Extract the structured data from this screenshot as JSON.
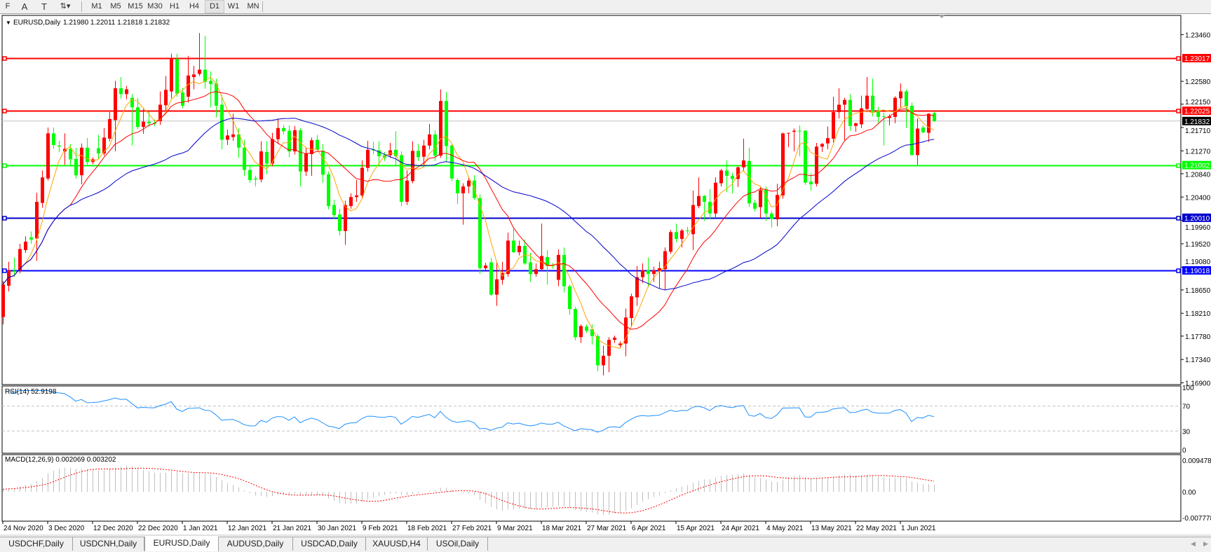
{
  "toolbar": {
    "tools": [
      {
        "name": "fibo-fan-tool",
        "label": "F"
      },
      {
        "name": "text-tool",
        "label": "A"
      },
      {
        "name": "text-label-tool",
        "label": "T"
      },
      {
        "name": "arrows-tool",
        "label": "⇅▾"
      }
    ],
    "timeframes": [
      "M1",
      "M5",
      "M15",
      "M30",
      "H1",
      "H4",
      "D1",
      "W1",
      "MN"
    ],
    "active_timeframe": "D1"
  },
  "chart": {
    "title": "EURUSD,Daily",
    "ohlc_readout": "1.21980 1.22011 1.21818 1.21832",
    "current_price": "1.21832"
  },
  "colors": {
    "bull_candle": "#ff0000",
    "bear_candle": "#00ff00",
    "ma_fast": "#ffa500",
    "ma_mid": "#ff0000",
    "ma_slow": "#0000cd",
    "rsi_line": "#1e90ff",
    "macd_hist": "#c0c0c0",
    "macd_signal": "#ff0000",
    "bid_line": "#c0c0c0"
  },
  "chart_data": {
    "type": "candlestick",
    "symbol": "EURUSD",
    "timeframe": "Daily",
    "y_ticks": [
      "1.23460",
      "1.22580",
      "1.22150",
      "1.21710",
      "1.21270",
      "1.20840",
      "1.20400",
      "1.19960",
      "1.19520",
      "1.19080",
      "1.18650",
      "1.18210",
      "1.17780",
      "1.17340",
      "1.16900"
    ],
    "ylim": [
      1.169,
      1.2375
    ],
    "x_labels": [
      "24 Nov 2020",
      "3 Dec 2020",
      "12 Dec 2020",
      "22 Dec 2020",
      "1 Jan 2021",
      "12 Jan 2021",
      "21 Jan 2021",
      "30 Jan 2021",
      "9 Feb 2021",
      "18 Feb 2021",
      "27 Feb 2021",
      "9 Mar 2021",
      "18 Mar 2021",
      "27 Mar 2021",
      "6 Apr 2021",
      "15 Apr 2021",
      "24 Apr 2021",
      "4 May 2021",
      "13 May 2021",
      "22 May 2021",
      "1 Jun 2021"
    ],
    "horizontal_lines": [
      {
        "price": "1.23017",
        "color": "#ff0000"
      },
      {
        "price": "1.22025",
        "color": "#ff0000"
      },
      {
        "price": "1.21002",
        "color": "#00ff00"
      },
      {
        "price": "1.20010",
        "color": "#0000cc"
      },
      {
        "price": "1.19018",
        "color": "#0000ff"
      }
    ],
    "ohlc": [
      [
        1.1814,
        1.1882,
        1.18,
        1.1875
      ],
      [
        1.1873,
        1.1918,
        1.1862,
        1.1902
      ],
      [
        1.1901,
        1.1926,
        1.189,
        1.1899
      ],
      [
        1.1902,
        1.1952,
        1.1896,
        1.1942
      ],
      [
        1.194,
        1.1966,
        1.1935,
        1.1956
      ],
      [
        1.1964,
        1.1975,
        1.1952,
        1.196
      ],
      [
        1.1962,
        1.2048,
        1.192,
        1.2031
      ],
      [
        1.2029,
        1.209,
        1.202,
        1.2077
      ],
      [
        1.2075,
        1.2171,
        1.2071,
        1.216
      ],
      [
        1.216,
        1.2171,
        1.2131,
        1.2138
      ],
      [
        1.2137,
        1.2146,
        1.2125,
        1.2135
      ],
      [
        1.2126,
        1.216,
        1.2101,
        1.2131
      ],
      [
        1.2131,
        1.214,
        1.21,
        1.2111
      ],
      [
        1.2112,
        1.2133,
        1.2075,
        1.2081
      ],
      [
        1.2081,
        1.2141,
        1.2064,
        1.2133
      ],
      [
        1.2133,
        1.2151,
        1.21,
        1.2106
      ],
      [
        1.2106,
        1.2115,
        1.2102,
        1.2111
      ],
      [
        1.2132,
        1.2157,
        1.2112,
        1.2122
      ],
      [
        1.2122,
        1.217,
        1.2118,
        1.2152
      ],
      [
        1.215,
        1.22,
        1.2145,
        1.2187
      ],
      [
        1.2185,
        1.2259,
        1.2126,
        1.2245
      ],
      [
        1.2245,
        1.2266,
        1.2226,
        1.2234
      ],
      [
        1.2234,
        1.2249,
        1.2224,
        1.2243
      ],
      [
        1.2227,
        1.2234,
        1.2137,
        1.2209
      ],
      [
        1.2209,
        1.2227,
        1.2168,
        1.2172
      ],
      [
        1.2172,
        1.2206,
        1.2159,
        1.2182
      ],
      [
        1.2182,
        1.2201,
        1.2172,
        1.2179
      ],
      [
        1.218,
        1.2186,
        1.2174,
        1.2178
      ],
      [
        1.2183,
        1.2239,
        1.2176,
        1.2214
      ],
      [
        1.2213,
        1.2268,
        1.2203,
        1.2242
      ],
      [
        1.2239,
        1.231,
        1.2226,
        1.2301
      ],
      [
        1.23,
        1.231,
        1.2229,
        1.2235
      ],
      [
        1.2237,
        1.2246,
        1.2207,
        1.2212
      ],
      [
        1.2229,
        1.2306,
        1.2218,
        1.2269
      ],
      [
        1.2266,
        1.2287,
        1.2243,
        1.2271
      ],
      [
        1.2272,
        1.2349,
        1.2268,
        1.228
      ],
      [
        1.228,
        1.2344,
        1.2244,
        1.2257
      ],
      [
        1.2259,
        1.2277,
        1.2209,
        1.2253
      ],
      [
        1.2254,
        1.2263,
        1.219,
        1.2212
      ],
      [
        1.2214,
        1.2232,
        1.213,
        1.2148
      ],
      [
        1.2148,
        1.2167,
        1.2138,
        1.2156
      ],
      [
        1.2153,
        1.2197,
        1.2146,
        1.2158
      ],
      [
        1.2158,
        1.217,
        1.2114,
        1.2133
      ],
      [
        1.2133,
        1.2148,
        1.208,
        1.2091
      ],
      [
        1.2091,
        1.21,
        1.2067,
        1.2072
      ],
      [
        1.2075,
        1.208,
        1.206,
        1.2073
      ],
      [
        1.2073,
        1.2145,
        1.2068,
        1.2126
      ],
      [
        1.2125,
        1.2145,
        1.2083,
        1.2103
      ],
      [
        1.2103,
        1.2161,
        1.2098,
        1.2149
      ],
      [
        1.2149,
        1.2188,
        1.214,
        1.217
      ],
      [
        1.217,
        1.2176,
        1.2158,
        1.2164
      ],
      [
        1.2165,
        1.2175,
        1.2115,
        1.2126
      ],
      [
        1.2126,
        1.2174,
        1.212,
        1.2166
      ],
      [
        1.2166,
        1.217,
        1.206,
        1.2088
      ],
      [
        1.2088,
        1.2133,
        1.208,
        1.2122
      ],
      [
        1.2121,
        1.2152,
        1.208,
        1.2147
      ],
      [
        1.2148,
        1.2157,
        1.2127,
        1.2129
      ],
      [
        1.2127,
        1.214,
        1.2067,
        1.2082
      ],
      [
        1.2083,
        1.2088,
        1.2017,
        1.2023
      ],
      [
        1.2025,
        1.2035,
        1.2,
        1.2006
      ],
      [
        1.2007,
        1.2018,
        1.1968,
        1.1976
      ],
      [
        1.1976,
        1.2033,
        1.195,
        1.2025
      ],
      [
        1.2023,
        1.2047,
        1.2018,
        1.204
      ],
      [
        1.204,
        1.2072,
        1.2031,
        1.2043
      ],
      [
        1.2043,
        1.2109,
        1.2037,
        1.2095
      ],
      [
        1.2095,
        1.2146,
        1.2088,
        1.2129
      ],
      [
        1.213,
        1.2144,
        1.2121,
        1.2128
      ],
      [
        1.2128,
        1.2145,
        1.2099,
        1.2117
      ],
      [
        1.2119,
        1.2125,
        1.2108,
        1.2114
      ],
      [
        1.2119,
        1.2142,
        1.2114,
        1.2128
      ],
      [
        1.2129,
        1.2164,
        1.21,
        1.2117
      ],
      [
        1.2119,
        1.2126,
        1.2023,
        1.2031
      ],
      [
        1.2031,
        1.209,
        1.2025,
        1.2071
      ],
      [
        1.207,
        1.2145,
        1.2066,
        1.2127
      ],
      [
        1.2127,
        1.214,
        1.2108,
        1.2115
      ],
      [
        1.2116,
        1.2148,
        1.21,
        1.2137
      ],
      [
        1.2137,
        1.2178,
        1.213,
        1.2158
      ],
      [
        1.2158,
        1.2166,
        1.2108,
        1.2118
      ],
      [
        1.2118,
        1.2243,
        1.2114,
        1.2221
      ],
      [
        1.2221,
        1.2238,
        1.2106,
        1.2136
      ],
      [
        1.2137,
        1.214,
        1.207,
        1.2075
      ],
      [
        1.2072,
        1.2075,
        1.2027,
        1.2047
      ],
      [
        1.2047,
        1.2066,
        1.1988,
        1.206
      ],
      [
        1.206,
        1.2078,
        1.2047,
        1.2071
      ],
      [
        1.2071,
        1.2081,
        1.2035,
        1.2038
      ],
      [
        1.2038,
        1.2045,
        1.1895,
        1.1906
      ],
      [
        1.1906,
        1.1916,
        1.1902,
        1.1911
      ],
      [
        1.1917,
        1.1925,
        1.1854,
        1.1856
      ],
      [
        1.1856,
        1.1918,
        1.1835,
        1.1885
      ],
      [
        1.1884,
        1.1918,
        1.1875,
        1.1897
      ],
      [
        1.1895,
        1.1973,
        1.189,
        1.1958
      ],
      [
        1.1958,
        1.198,
        1.1935,
        1.1936
      ],
      [
        1.1936,
        1.1958,
        1.193,
        1.1948
      ],
      [
        1.1948,
        1.196,
        1.1912,
        1.1915
      ],
      [
        1.1917,
        1.1935,
        1.188,
        1.1895
      ],
      [
        1.1895,
        1.1915,
        1.189,
        1.1904
      ],
      [
        1.1904,
        1.199,
        1.19,
        1.1929
      ],
      [
        1.1927,
        1.194,
        1.1875,
        1.191
      ],
      [
        1.1912,
        1.1916,
        1.1905,
        1.191
      ],
      [
        1.1884,
        1.1941,
        1.1872,
        1.1931
      ],
      [
        1.1931,
        1.1945,
        1.186,
        1.1872
      ],
      [
        1.1872,
        1.1875,
        1.1818,
        1.1829
      ],
      [
        1.1829,
        1.1833,
        1.177,
        1.1776
      ],
      [
        1.1776,
        1.18,
        1.1765,
        1.1797
      ],
      [
        1.1796,
        1.18,
        1.1784,
        1.1788
      ],
      [
        1.1791,
        1.18,
        1.1762,
        1.1778
      ],
      [
        1.1778,
        1.1782,
        1.1712,
        1.1723
      ],
      [
        1.1723,
        1.176,
        1.1704,
        1.1741
      ],
      [
        1.1741,
        1.1776,
        1.171,
        1.1771
      ],
      [
        1.1771,
        1.1779,
        1.1765,
        1.1775
      ],
      [
        1.1761,
        1.1768,
        1.1757,
        1.1764
      ],
      [
        1.1764,
        1.183,
        1.174,
        1.1813
      ],
      [
        1.1812,
        1.1858,
        1.1795,
        1.1853
      ],
      [
        1.1851,
        1.191,
        1.1835,
        1.1889
      ],
      [
        1.1889,
        1.1915,
        1.1878,
        1.1902
      ],
      [
        1.1902,
        1.1926,
        1.187,
        1.1895
      ],
      [
        1.1895,
        1.1909,
        1.188,
        1.1902
      ],
      [
        1.19,
        1.1918,
        1.1868,
        1.1906
      ],
      [
        1.1904,
        1.1945,
        1.1865,
        1.1938
      ],
      [
        1.1937,
        1.1978,
        1.1933,
        1.1974
      ],
      [
        1.1974,
        1.199,
        1.1955,
        1.1961
      ],
      [
        1.1961,
        1.198,
        1.1945,
        1.1977
      ],
      [
        1.1977,
        1.1984,
        1.197,
        1.1976
      ],
      [
        1.197,
        1.2052,
        1.194,
        1.2025
      ],
      [
        1.2023,
        1.2077,
        1.2019,
        1.2042
      ],
      [
        1.2042,
        1.2044,
        1.1995,
        1.2031
      ],
      [
        1.2031,
        1.2055,
        1.1998,
        1.2009
      ],
      [
        1.2009,
        1.2077,
        1.2,
        1.2067
      ],
      [
        1.2066,
        1.2093,
        1.206,
        1.209
      ],
      [
        1.209,
        1.2109,
        1.2049,
        1.208
      ],
      [
        1.208,
        1.2086,
        1.2047,
        1.2074
      ],
      [
        1.2074,
        1.2098,
        1.2059,
        1.2096
      ],
      [
        1.2096,
        1.215,
        1.209,
        1.2109
      ],
      [
        1.2108,
        1.2133,
        1.2021,
        1.2028
      ],
      [
        1.2029,
        1.2035,
        1.2013,
        1.2018
      ],
      [
        1.2021,
        1.2059,
        1.2001,
        1.2053
      ],
      [
        1.2054,
        1.206,
        1.1995,
        1.2009
      ],
      [
        1.2009,
        1.2013,
        1.1983,
        1.1999
      ],
      [
        1.1998,
        1.2065,
        1.1985,
        1.2044
      ],
      [
        1.2043,
        1.2161,
        1.2037,
        1.216
      ],
      [
        1.216,
        1.2161,
        1.2134,
        1.2161
      ],
      [
        1.2163,
        1.2169,
        1.2126,
        1.2165
      ],
      [
        1.2165,
        1.2175,
        1.2117,
        1.2164
      ],
      [
        1.2165,
        1.2166,
        1.2063,
        1.2067
      ],
      [
        1.2069,
        1.2085,
        1.2052,
        1.2064
      ],
      [
        1.2065,
        1.2142,
        1.206,
        1.2135
      ],
      [
        1.2135,
        1.2142,
        1.2125,
        1.214
      ],
      [
        1.2141,
        1.2173,
        1.213,
        1.2151
      ],
      [
        1.215,
        1.2229,
        1.2143,
        1.22
      ],
      [
        1.22,
        1.2245,
        1.2188,
        1.2214
      ],
      [
        1.2214,
        1.2227,
        1.2147,
        1.2223
      ],
      [
        1.2223,
        1.2234,
        1.2165,
        1.2174
      ],
      [
        1.2174,
        1.218,
        1.2163,
        1.2179
      ],
      [
        1.2177,
        1.2231,
        1.217,
        1.2207
      ],
      [
        1.2206,
        1.2266,
        1.22,
        1.2231
      ],
      [
        1.2231,
        1.2263,
        1.2192,
        1.2201
      ],
      [
        1.2202,
        1.221,
        1.218,
        1.2191
      ],
      [
        1.2192,
        1.2199,
        1.2137,
        1.2191
      ],
      [
        1.2189,
        1.2196,
        1.2175,
        1.2192
      ],
      [
        1.2191,
        1.223,
        1.2179,
        1.2227
      ],
      [
        1.2226,
        1.2254,
        1.2208,
        1.2239
      ],
      [
        1.2239,
        1.2243,
        1.217,
        1.2211
      ],
      [
        1.2212,
        1.2218,
        1.2119,
        1.2119
      ],
      [
        1.2119,
        1.2188,
        1.2101,
        1.2169
      ],
      [
        1.2171,
        1.2175,
        1.216,
        1.2162
      ],
      [
        1.2161,
        1.2198,
        1.2144,
        1.2197
      ],
      [
        1.2198,
        1.22011,
        1.21818,
        1.21832
      ]
    ],
    "rsi": {
      "label": "RSI(14) 52.9198",
      "levels": [
        70,
        30
      ],
      "y_ticks": [
        "100",
        "70",
        "30",
        "0"
      ],
      "ylim": [
        0,
        100
      ]
    },
    "macd": {
      "label": "MACD(12,26,9) 0.002069 0.003202",
      "y_ticks": [
        "0.009478",
        "0.00",
        "-0.007778"
      ],
      "ylim": [
        -0.007778,
        0.009478
      ]
    }
  },
  "tabs": [
    {
      "label": "USDCHF,Daily",
      "active": false
    },
    {
      "label": "USDCNH,Daily",
      "active": false
    },
    {
      "label": "EURUSD,Daily",
      "active": true
    },
    {
      "label": "AUDUSD,Daily",
      "active": false
    },
    {
      "label": "USDCAD,Daily",
      "active": false
    },
    {
      "label": "XAUUSD,H4",
      "active": false
    },
    {
      "label": "USOil,Daily",
      "active": false
    }
  ]
}
